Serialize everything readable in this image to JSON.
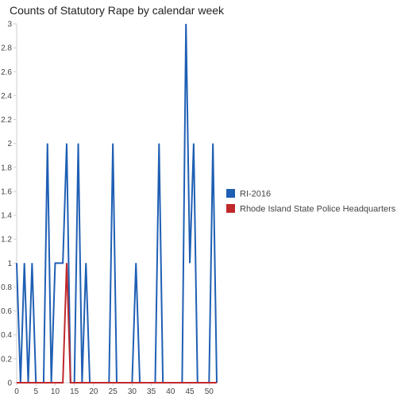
{
  "chart_data": {
    "type": "line",
    "title": "Counts of Statutory Rape by calendar week",
    "xlabel": "",
    "ylabel": "",
    "xlim": [
      0,
      52
    ],
    "ylim": [
      0,
      3
    ],
    "x_ticks": [
      0,
      5,
      10,
      15,
      20,
      25,
      30,
      35,
      40,
      45,
      50
    ],
    "y_ticks": [
      0,
      0.2,
      0.4,
      0.6,
      0.8,
      1,
      1.2,
      1.4,
      1.6,
      1.8,
      2,
      2.2,
      2.4,
      2.6,
      2.8,
      3
    ],
    "grid": false,
    "legend_position": "right",
    "series": [
      {
        "name": "RI-2016",
        "color": "#1f5fb4",
        "points": [
          [
            0,
            1
          ],
          [
            1,
            0
          ],
          [
            2,
            1
          ],
          [
            3,
            0
          ],
          [
            4,
            1
          ],
          [
            5,
            0
          ],
          [
            6,
            0
          ],
          [
            7,
            0
          ],
          [
            8,
            2
          ],
          [
            9,
            0
          ],
          [
            10,
            1
          ],
          [
            11,
            1
          ],
          [
            12,
            1
          ],
          [
            13,
            2
          ],
          [
            14,
            0
          ],
          [
            15,
            0
          ],
          [
            16,
            2
          ],
          [
            17,
            0
          ],
          [
            18,
            1
          ],
          [
            19,
            0
          ],
          [
            20,
            0
          ],
          [
            21,
            0
          ],
          [
            22,
            0
          ],
          [
            23,
            0
          ],
          [
            24,
            0
          ],
          [
            25,
            2
          ],
          [
            26,
            0
          ],
          [
            27,
            0
          ],
          [
            28,
            0
          ],
          [
            29,
            0
          ],
          [
            30,
            0
          ],
          [
            31,
            1
          ],
          [
            32,
            0
          ],
          [
            33,
            0
          ],
          [
            34,
            0
          ],
          [
            35,
            0
          ],
          [
            36,
            0
          ],
          [
            37,
            2
          ],
          [
            38,
            0
          ],
          [
            39,
            0
          ],
          [
            40,
            0
          ],
          [
            41,
            0
          ],
          [
            42,
            0
          ],
          [
            43,
            0
          ],
          [
            44,
            3
          ],
          [
            45,
            1
          ],
          [
            46,
            2
          ],
          [
            47,
            0
          ],
          [
            48,
            0
          ],
          [
            49,
            0
          ],
          [
            50,
            0
          ],
          [
            51,
            2
          ],
          [
            52,
            0
          ]
        ]
      },
      {
        "name": "Rhode Island State Police Headquarters",
        "color": "#c0282b",
        "points": [
          [
            0,
            0
          ],
          [
            12,
            0
          ],
          [
            13,
            1
          ],
          [
            14,
            0
          ],
          [
            52,
            0
          ]
        ]
      }
    ]
  }
}
